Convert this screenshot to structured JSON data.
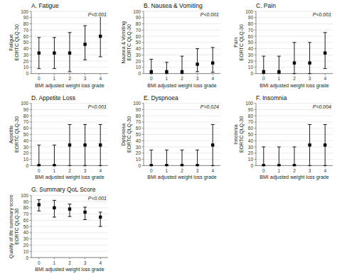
{
  "chart_data": [
    {
      "type": "scatter",
      "title": "A. Fatigue",
      "y_label": "Fatigue\nEORTC QLQ-30",
      "x_label": "BMI adjusted weight loss grade",
      "annotations": [
        "P<0.001"
      ],
      "x": [
        0,
        1,
        2,
        3,
        4
      ],
      "values": [
        33,
        33,
        33,
        47,
        60
      ],
      "yerr_low": [
        25,
        25,
        30,
        25,
        33
      ],
      "yerr_high": [
        25,
        25,
        33,
        30,
        33
      ],
      "color": "black",
      "marker": "square",
      "xlim": [
        -0.5,
        4.5
      ],
      "xticks": [
        0,
        1,
        2,
        3,
        4
      ],
      "ylim": [
        0,
        100
      ],
      "yticks": [
        0,
        10,
        20,
        30,
        40,
        50,
        60,
        70,
        80,
        90,
        100
      ],
      "grid": "y"
    },
    {
      "type": "scatter",
      "title": "B. Nausea & Vomiting",
      "y_label": "Nausea & Vomiting\nEORTC QLQ-30",
      "x_label": "BMI adjusted weight loss grade",
      "annotations": [
        "P<0.001"
      ],
      "x": [
        0,
        1,
        2,
        3,
        4
      ],
      "values": [
        3,
        3,
        3,
        15,
        17
      ],
      "yerr_low": [
        3,
        3,
        3,
        12,
        15
      ],
      "yerr_high": [
        20,
        15,
        25,
        25,
        25
      ],
      "color": "black",
      "marker": "square",
      "xlim": [
        -0.5,
        4.5
      ],
      "xticks": [
        0,
        1,
        2,
        3,
        4
      ],
      "ylim": [
        0,
        100
      ],
      "yticks": [
        0,
        10,
        20,
        30,
        40,
        50,
        60,
        70,
        80,
        90,
        100
      ],
      "grid": "y"
    },
    {
      "type": "scatter",
      "title": "C. Pain",
      "y_label": "Pain\nEORTC QLQ-30",
      "x_label": "BMI adjusted weight loss grade",
      "annotations": [
        "P<0.001"
      ],
      "x": [
        0,
        1,
        2,
        3,
        4
      ],
      "values": [
        3,
        3,
        17,
        17,
        33
      ],
      "yerr_low": [
        3,
        3,
        17,
        17,
        25
      ],
      "yerr_high": [
        25,
        25,
        33,
        33,
        33
      ],
      "color": "black",
      "marker": "square",
      "xlim": [
        -0.5,
        4.5
      ],
      "xticks": [
        0,
        1,
        2,
        3,
        4
      ],
      "ylim": [
        0,
        100
      ],
      "yticks": [
        0,
        10,
        20,
        30,
        40,
        50,
        60,
        70,
        80,
        90,
        100
      ],
      "grid": "y"
    },
    {
      "type": "scatter",
      "title": "D. Appetite Loss",
      "y_label": "Appetite\nEORTC QLQ-30",
      "x_label": "BMI adjusted weight loss grade",
      "annotations": [
        "P<0.001"
      ],
      "x": [
        0,
        1,
        2,
        3,
        4
      ],
      "values": [
        0,
        0,
        33,
        33,
        33
      ],
      "yerr_low": [
        0,
        0,
        33,
        33,
        33
      ],
      "yerr_high": [
        33,
        33,
        33,
        33,
        33
      ],
      "color": "black",
      "marker": "square",
      "xlim": [
        -0.5,
        4.5
      ],
      "xticks": [
        0,
        1,
        2,
        3,
        4
      ],
      "ylim": [
        0,
        100
      ],
      "yticks": [
        0,
        10,
        20,
        30,
        40,
        50,
        60,
        70,
        80,
        90,
        100
      ],
      "grid": "y"
    },
    {
      "type": "scatter",
      "title": "E. Dyspnoea",
      "y_label": "Dyspnoea\nEORTC QLQ-30",
      "x_label": "BMI adjusted weight loss grade",
      "annotations": [
        "P=0.024"
      ],
      "x": [
        0,
        1,
        2,
        3,
        4
      ],
      "values": [
        0,
        0,
        0,
        0,
        33
      ],
      "yerr_low": [
        0,
        0,
        0,
        0,
        33
      ],
      "yerr_high": [
        25,
        25,
        25,
        25,
        33
      ],
      "color": "black",
      "marker": "square",
      "xlim": [
        -0.5,
        4.5
      ],
      "xticks": [
        0,
        1,
        2,
        3,
        4
      ],
      "ylim": [
        0,
        100
      ],
      "yticks": [
        0,
        10,
        20,
        30,
        40,
        50,
        60,
        70,
        80,
        90,
        100
      ],
      "grid": "y"
    },
    {
      "type": "scatter",
      "title": "F. Insomnia",
      "y_label": "Insomnia\nEORTC QLQ-30",
      "x_label": "BMI adjusted weight loss grade",
      "annotations": [
        "P=0.004"
      ],
      "x": [
        0,
        1,
        2,
        3,
        4
      ],
      "values": [
        0,
        0,
        0,
        33,
        33
      ],
      "yerr_low": [
        0,
        0,
        0,
        33,
        33
      ],
      "yerr_high": [
        30,
        30,
        30,
        33,
        33
      ],
      "color": "black",
      "marker": "square",
      "xlim": [
        -0.5,
        4.5
      ],
      "xticks": [
        0,
        1,
        2,
        3,
        4
      ],
      "ylim": [
        0,
        100
      ],
      "yticks": [
        0,
        10,
        20,
        30,
        40,
        50,
        60,
        70,
        80,
        90,
        100
      ],
      "grid": "y"
    },
    {
      "type": "scatter",
      "title": "G. Summary QoL Score",
      "y_label": "Quality of life summary score\nEORTC QLQ-30",
      "x_label": "BMI adjusted weight loss grade",
      "annotations": [
        "P<0.001"
      ],
      "x": [
        0,
        1,
        2,
        3,
        4
      ],
      "values": [
        85,
        80,
        78,
        73,
        65
      ],
      "yerr_low": [
        10,
        15,
        12,
        12,
        15
      ],
      "yerr_high": [
        8,
        12,
        8,
        8,
        8
      ],
      "color": "black",
      "marker": "square",
      "xlim": [
        -0.5,
        4.5
      ],
      "xticks": [
        0,
        1,
        2,
        3,
        4
      ],
      "ylim": [
        0,
        100
      ],
      "yticks": [
        0,
        10,
        20,
        30,
        40,
        50,
        60,
        70,
        80,
        90,
        100
      ],
      "grid": "y"
    }
  ]
}
